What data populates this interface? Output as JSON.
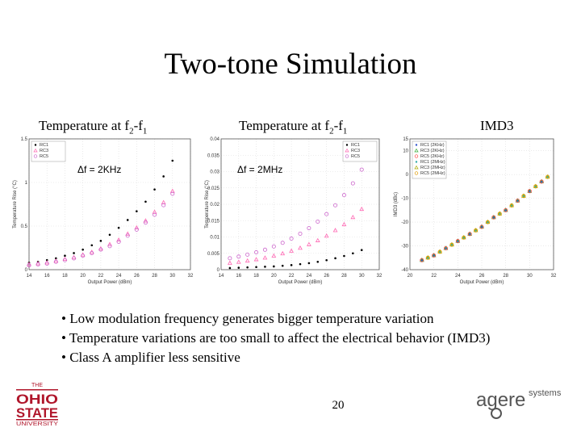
{
  "slide": {
    "title": "Two-tone Simulation",
    "page_number": "20",
    "captions": {
      "plot1_prefix": "Temperature at f",
      "plot1_sub1": "2",
      "plot1_mid": "-f",
      "plot1_sub2": "1",
      "plot2_prefix": "Temperature at f",
      "plot2_sub1": "2",
      "plot2_mid": "-f",
      "plot2_sub2": "1",
      "plot3": "IMD3"
    },
    "bullets": [
      "• Low modulation frequency generates bigger temperature variation",
      "• Temperature variations are too small to affect the electrical behavior (IMD3)",
      "• Class A amplifier less sensitive"
    ],
    "logos": {
      "left": "OHIO STATE UNIVERSITY",
      "right_main": "agere",
      "right_sub": "systems"
    }
  },
  "chart_data": [
    {
      "type": "scatter",
      "annotation": "Δf = 2KHz",
      "xlabel": "Output Power (dBm)",
      "ylabel": "Temperature Rise (°C)",
      "xlim": [
        14,
        32
      ],
      "ylim": [
        0,
        1.5
      ],
      "xticks": [
        14,
        16,
        18,
        20,
        22,
        24,
        26,
        28,
        30,
        32
      ],
      "yticks": [
        0,
        0.5,
        1,
        1.5
      ],
      "series": [
        {
          "name": "RC1",
          "color": "#000000",
          "marker": "dot",
          "x": [
            14,
            15,
            16,
            17,
            18,
            19,
            20,
            21,
            22,
            23,
            24,
            25,
            26,
            27,
            28,
            29,
            30
          ],
          "y": [
            0.08,
            0.09,
            0.11,
            0.13,
            0.16,
            0.19,
            0.23,
            0.28,
            0.33,
            0.4,
            0.48,
            0.57,
            0.67,
            0.78,
            0.92,
            1.07,
            1.25
          ]
        },
        {
          "name": "RC3",
          "color": "#ff69b4",
          "marker": "triangle",
          "x": [
            14,
            15,
            16,
            17,
            18,
            19,
            20,
            21,
            22,
            23,
            24,
            25,
            26,
            27,
            28,
            29,
            30
          ],
          "y": [
            0.06,
            0.07,
            0.08,
            0.1,
            0.12,
            0.14,
            0.17,
            0.2,
            0.24,
            0.29,
            0.34,
            0.41,
            0.48,
            0.56,
            0.66,
            0.77,
            0.9
          ]
        },
        {
          "name": "RC5",
          "color": "#cc66cc",
          "marker": "circle",
          "x": [
            14,
            15,
            16,
            17,
            18,
            19,
            20,
            21,
            22,
            23,
            24,
            25,
            26,
            27,
            28,
            29,
            30
          ],
          "y": [
            0.05,
            0.06,
            0.07,
            0.09,
            0.11,
            0.13,
            0.16,
            0.19,
            0.23,
            0.27,
            0.32,
            0.39,
            0.46,
            0.54,
            0.63,
            0.74,
            0.87
          ]
        }
      ]
    },
    {
      "type": "scatter",
      "annotation": "Δf = 2MHz",
      "xlabel": "Output Power (dBm)",
      "ylabel": "Temperature Rise (°C)",
      "xlim": [
        14,
        32
      ],
      "ylim": [
        0.0,
        0.04
      ],
      "xticks": [
        14,
        16,
        18,
        20,
        22,
        24,
        26,
        28,
        30,
        32
      ],
      "yticks": [
        0,
        0.005,
        0.01,
        0.015,
        0.02,
        0.025,
        0.03,
        0.035,
        0.04
      ],
      "series": [
        {
          "name": "RC1",
          "color": "#000000",
          "marker": "dot",
          "x": [
            15,
            16,
            17,
            18,
            19,
            20,
            21,
            22,
            23,
            24,
            25,
            26,
            27,
            28,
            29,
            30
          ],
          "y": [
            0.0005,
            0.0006,
            0.0007,
            0.0008,
            0.0009,
            0.001,
            0.0012,
            0.0014,
            0.0017,
            0.002,
            0.0024,
            0.0029,
            0.0035,
            0.0042,
            0.005,
            0.006
          ]
        },
        {
          "name": "RC3",
          "color": "#ff69b4",
          "marker": "triangle",
          "x": [
            15,
            16,
            17,
            18,
            19,
            20,
            21,
            22,
            23,
            24,
            25,
            26,
            27,
            28,
            29,
            30
          ],
          "y": [
            0.002,
            0.0023,
            0.0027,
            0.0031,
            0.0036,
            0.0042,
            0.0049,
            0.0057,
            0.0066,
            0.0077,
            0.0089,
            0.0103,
            0.012,
            0.0138,
            0.016,
            0.0185
          ]
        },
        {
          "name": "RC5",
          "color": "#cc66cc",
          "marker": "circle",
          "x": [
            15,
            16,
            17,
            18,
            19,
            20,
            21,
            22,
            23,
            24,
            25,
            26,
            27,
            28,
            29,
            30
          ],
          "y": [
            0.0035,
            0.004,
            0.0046,
            0.0053,
            0.0061,
            0.0071,
            0.0082,
            0.0095,
            0.011,
            0.0127,
            0.0147,
            0.017,
            0.0197,
            0.0228,
            0.0264,
            0.0306
          ]
        }
      ]
    },
    {
      "type": "scatter",
      "xlabel": "Output Power (dBm)",
      "ylabel": "IMD3 (dBc)",
      "xlim": [
        20,
        32
      ],
      "ylim": [
        -40,
        15
      ],
      "xticks": [
        20,
        22,
        24,
        26,
        28,
        30,
        32
      ],
      "yticks": [
        -40,
        -30,
        -20,
        -10,
        0,
        10,
        15
      ],
      "series": [
        {
          "name": "RC1 (2KHz)",
          "color": "#3355cc",
          "marker": "dot",
          "x": [
            21,
            22,
            23,
            24,
            25,
            26,
            27,
            28,
            29,
            30,
            31
          ],
          "y": [
            -36,
            -34,
            -31,
            -28,
            -25,
            -22,
            -18,
            -15,
            -11,
            -7,
            -3
          ]
        },
        {
          "name": "RC3 (2KHz)",
          "color": "#33aa33",
          "marker": "triangle",
          "x": [
            21,
            22,
            23,
            24,
            25,
            26,
            27,
            28,
            29,
            30,
            31
          ],
          "y": [
            -36,
            -34,
            -31,
            -28,
            -25,
            -22,
            -18,
            -15,
            -11,
            -7,
            -3
          ]
        },
        {
          "name": "RC5 (2KHz)",
          "color": "#ff4444",
          "marker": "circle",
          "x": [
            21,
            22,
            23,
            24,
            25,
            26,
            27,
            28,
            29,
            30,
            31
          ],
          "y": [
            -36,
            -34,
            -31,
            -28,
            -25,
            -22,
            -18,
            -15,
            -11,
            -7,
            -3
          ]
        },
        {
          "name": "RC1 (2MHz)",
          "color": "#33aaaa",
          "marker": "dot",
          "x": [
            21.5,
            22.5,
            23.5,
            24.5,
            25.5,
            26.5,
            27.5,
            28.5,
            29.5,
            30.5,
            31.5
          ],
          "y": [
            -35,
            -32.5,
            -29.5,
            -26.5,
            -23.5,
            -20,
            -16.5,
            -13,
            -9,
            -5,
            -1
          ]
        },
        {
          "name": "RC3 (2MHz)",
          "color": "#aaaa00",
          "marker": "triangle",
          "x": [
            21.5,
            22.5,
            23.5,
            24.5,
            25.5,
            26.5,
            27.5,
            28.5,
            29.5,
            30.5,
            31.5
          ],
          "y": [
            -35,
            -32.5,
            -29.5,
            -26.5,
            -23.5,
            -20,
            -16.5,
            -13,
            -9,
            -5,
            -1
          ]
        },
        {
          "name": "RC5 (2MHz)",
          "color": "#dd9900",
          "marker": "circle",
          "x": [
            21.5,
            22.5,
            23.5,
            24.5,
            25.5,
            26.5,
            27.5,
            28.5,
            29.5,
            30.5,
            31.5
          ],
          "y": [
            -35,
            -32.5,
            -29.5,
            -26.5,
            -23.5,
            -20,
            -16.5,
            -13,
            -9,
            -5,
            -1
          ]
        }
      ]
    }
  ]
}
